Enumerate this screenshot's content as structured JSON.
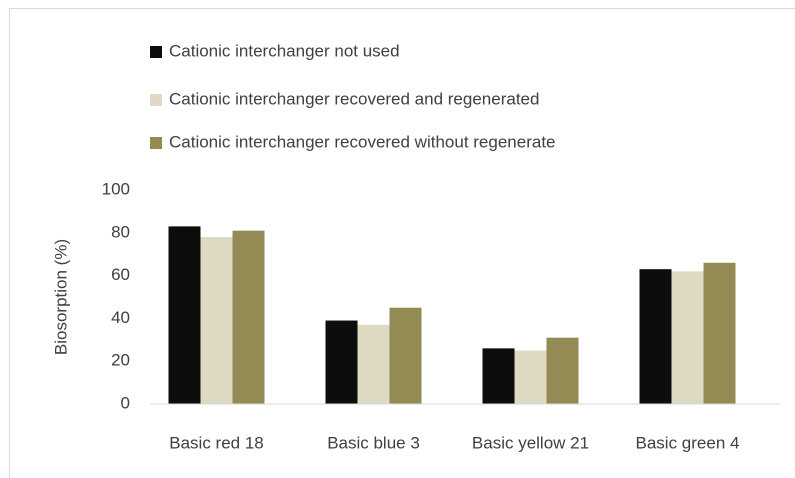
{
  "chart_data": {
    "type": "bar",
    "y_label": "Biosorption (%)",
    "categories": [
      "Basic red 18",
      "Basic blue 3",
      "Basic yellow 21",
      "Basic green 4"
    ],
    "series": [
      {
        "name": "Cationic interchanger not used",
        "color": "#0d0d0d",
        "values": [
          83,
          39,
          26,
          63
        ]
      },
      {
        "name": "Cationic interchanger recovered and regenerated",
        "color": "#ddd9c3",
        "values": [
          78,
          37,
          25,
          62
        ]
      },
      {
        "name": "Cationic interchanger recovered without regenerate",
        "color": "#948a54",
        "values": [
          81,
          45,
          31,
          66
        ]
      }
    ],
    "ylim": [
      0,
      100
    ],
    "yticks": [
      0,
      20,
      40,
      60,
      80,
      100
    ],
    "grid": false,
    "legend": "top-left"
  }
}
